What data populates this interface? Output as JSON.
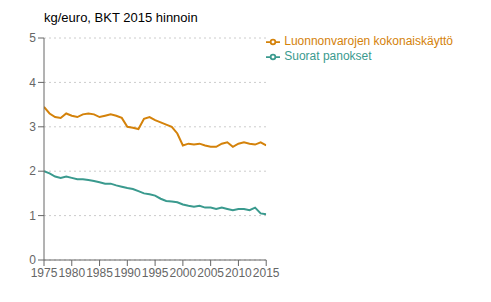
{
  "chart_data": {
    "type": "line",
    "title": "kg/euro, BKT 2015 hinnoin",
    "x": [
      1975,
      1976,
      1977,
      1978,
      1979,
      1980,
      1981,
      1982,
      1983,
      1984,
      1985,
      1986,
      1987,
      1988,
      1989,
      1990,
      1991,
      1992,
      1993,
      1994,
      1995,
      1996,
      1997,
      1998,
      1999,
      2000,
      2001,
      2002,
      2003,
      2004,
      2005,
      2006,
      2007,
      2008,
      2009,
      2010,
      2011,
      2012,
      2013,
      2014,
      2015
    ],
    "series": [
      {
        "name": "Luonnonvarojen kokonaiskäyttö",
        "color": "#D4820A",
        "values": [
          3.45,
          3.3,
          3.22,
          3.2,
          3.3,
          3.25,
          3.22,
          3.28,
          3.3,
          3.28,
          3.22,
          3.25,
          3.28,
          3.25,
          3.2,
          3.0,
          2.98,
          2.95,
          3.18,
          3.22,
          3.15,
          3.1,
          3.05,
          3.0,
          2.85,
          2.58,
          2.62,
          2.6,
          2.62,
          2.58,
          2.55,
          2.55,
          2.62,
          2.65,
          2.55,
          2.62,
          2.65,
          2.62,
          2.6,
          2.65,
          2.58
        ]
      },
      {
        "name": "Suorat panokset",
        "color": "#3A9A8E",
        "values": [
          2.0,
          1.95,
          1.88,
          1.85,
          1.88,
          1.85,
          1.82,
          1.82,
          1.8,
          1.78,
          1.75,
          1.72,
          1.72,
          1.68,
          1.65,
          1.62,
          1.6,
          1.55,
          1.5,
          1.48,
          1.45,
          1.38,
          1.33,
          1.32,
          1.3,
          1.25,
          1.22,
          1.2,
          1.22,
          1.18,
          1.18,
          1.15,
          1.18,
          1.15,
          1.12,
          1.15,
          1.15,
          1.12,
          1.18,
          1.05,
          1.03
        ]
      }
    ],
    "xlim": [
      1975,
      2015
    ],
    "ylim": [
      0,
      5
    ],
    "xticks": [
      1975,
      1980,
      1985,
      1990,
      1995,
      2000,
      2005,
      2010,
      2015
    ],
    "yticks": [
      0,
      1,
      2,
      3,
      4,
      5
    ],
    "grid": true,
    "legend": "upper right"
  }
}
